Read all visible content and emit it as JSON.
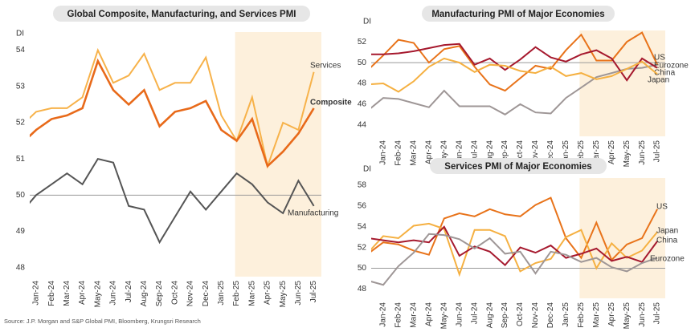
{
  "source": "Source: J.P. Morgan and S&P Global PMI, Bloomberg, Krungsri Research",
  "chart_data": [
    {
      "type": "line",
      "title": "Global Composite, Manufacturing, and Services PMI",
      "y_label": "DI",
      "categories": [
        null,
        "Jan-24",
        "Feb-24",
        "Mar-24",
        "Apr-24",
        "May-24",
        "Jun-24",
        "Jul-24",
        "Aug-24",
        "Sep-24",
        "Oct-24",
        "Nov-24",
        "Dec-24",
        "Jan-25",
        "Feb-25",
        "Mar-25",
        "Apr-25",
        "May-25",
        "Jun-25",
        "Jul-25"
      ],
      "series": [
        {
          "name": "Services",
          "color": "#f7b24a",
          "values": [
            51.9,
            52.3,
            52.4,
            52.4,
            52.7,
            54.0,
            53.1,
            53.3,
            53.9,
            52.9,
            53.1,
            53.1,
            53.8,
            52.2,
            51.5,
            52.7,
            50.8,
            52.0,
            51.8,
            53.4
          ]
        },
        {
          "name": "Composite",
          "color": "#e86a1a",
          "values": [
            51.4,
            51.8,
            52.1,
            52.2,
            52.4,
            53.7,
            52.9,
            52.5,
            52.9,
            51.9,
            52.3,
            52.4,
            52.6,
            51.8,
            51.5,
            52.1,
            50.8,
            51.2,
            51.7,
            52.4
          ]
        },
        {
          "name": "Manufacturing",
          "color": "#555555",
          "values": [
            49.5,
            50.0,
            50.3,
            50.6,
            50.3,
            51.0,
            50.9,
            49.7,
            49.6,
            48.7,
            49.4,
            50.1,
            49.6,
            50.1,
            50.6,
            50.3,
            49.8,
            49.5,
            50.4,
            49.7
          ]
        }
      ],
      "ylim": [
        47.75,
        54.5
      ],
      "yticks": [
        48,
        49,
        50,
        51,
        52,
        53,
        54
      ],
      "reference_line": 50,
      "shaded_range": [
        "Feb-25",
        "Jul-25"
      ],
      "shade_color": "#fdf0dc"
    },
    {
      "type": "line",
      "title": "Manufacturing PMI of Major Economies",
      "y_label": "DI",
      "categories": [
        null,
        "Jan-24",
        "Feb-24",
        "Mar-24",
        "Apr-24",
        "May-24",
        "Jun-24",
        "Jul-24",
        "Aug-24",
        "Sep-24",
        "Oct-24",
        "Nov-24",
        "Dec-24",
        "Jan-25",
        "Feb-25",
        "Mar-25",
        "Apr-25",
        "May-25",
        "Jun-25",
        "Jul-25"
      ],
      "series": [
        {
          "name": "US",
          "color": "#e8731a",
          "values": [
            49.3,
            50.7,
            52.2,
            51.9,
            50.0,
            51.3,
            51.6,
            49.6,
            47.9,
            47.3,
            48.5,
            49.7,
            49.4,
            51.2,
            52.7,
            50.2,
            50.2,
            52.0,
            52.9,
            49.8
          ]
        },
        {
          "name": "Eurozone",
          "color": "#9e9696",
          "values": [
            45.4,
            46.6,
            46.5,
            46.1,
            45.7,
            47.3,
            45.8,
            45.8,
            45.8,
            45.0,
            46.0,
            45.2,
            45.1,
            46.6,
            47.6,
            48.6,
            49.0,
            49.4,
            49.5,
            49.8
          ]
        },
        {
          "name": "China",
          "color": "#a6192e",
          "values": [
            50.8,
            50.8,
            50.9,
            51.1,
            51.4,
            51.7,
            51.8,
            49.8,
            50.4,
            49.3,
            50.3,
            51.5,
            50.5,
            50.1,
            50.8,
            51.2,
            50.4,
            48.3,
            50.4,
            49.5
          ]
        },
        {
          "name": "Japan",
          "color": "#f5b041",
          "values": [
            47.9,
            48.0,
            47.2,
            48.2,
            49.6,
            50.4,
            50.0,
            49.1,
            49.8,
            49.7,
            49.2,
            49.0,
            49.6,
            48.7,
            49.0,
            48.4,
            48.7,
            49.4,
            50.1,
            48.9
          ]
        }
      ],
      "ylim": [
        42.9,
        53.1
      ],
      "yticks": [
        44,
        46,
        48,
        50,
        52
      ],
      "reference_line": 50,
      "shaded_range": [
        "Feb-25",
        "Jul-25"
      ],
      "shade_color": "#fdf0dc"
    },
    {
      "type": "line",
      "title": "Services PMI of Major Economies",
      "y_label": "DI",
      "categories": [
        null,
        "Jan-24",
        "Feb-24",
        "Mar-24",
        "Apr-24",
        "May-24",
        "Jun-24",
        "Jul-24",
        "Aug-24",
        "Sep-24",
        "Oct-24",
        "Nov-24",
        "Dec-24",
        "Jan-25",
        "Feb-25",
        "Mar-25",
        "Apr-25",
        "May-25",
        "Jun-25",
        "Jul-25"
      ],
      "series": [
        {
          "name": "US",
          "color": "#e8731a",
          "values": [
            51.4,
            52.5,
            52.3,
            51.7,
            51.3,
            54.8,
            55.3,
            55.0,
            55.7,
            55.2,
            55.0,
            56.1,
            56.8,
            52.9,
            51.0,
            54.4,
            50.8,
            52.3,
            52.9,
            55.7
          ]
        },
        {
          "name": "Japan",
          "color": "#f5b041",
          "values": [
            51.5,
            53.1,
            52.9,
            54.1,
            54.3,
            53.8,
            49.4,
            53.7,
            53.7,
            53.1,
            49.7,
            50.5,
            50.9,
            53.0,
            53.7,
            50.0,
            52.4,
            51.0,
            51.7,
            53.5
          ]
        },
        {
          "name": "China",
          "color": "#a6192e",
          "values": [
            52.9,
            52.7,
            52.5,
            52.7,
            52.5,
            54.0,
            51.2,
            52.1,
            51.6,
            50.3,
            52.0,
            51.5,
            52.2,
            51.0,
            51.4,
            51.9,
            50.7,
            51.1,
            50.6,
            52.6
          ]
        },
        {
          "name": "Eurozone",
          "color": "#9e9696",
          "values": [
            48.8,
            48.4,
            50.2,
            51.5,
            53.3,
            53.2,
            52.8,
            51.9,
            52.9,
            51.4,
            51.6,
            49.5,
            51.6,
            51.3,
            50.6,
            51.0,
            50.1,
            49.7,
            50.5,
            51.0
          ]
        }
      ],
      "ylim": [
        47.1,
        58.7
      ],
      "yticks": [
        48,
        50,
        52,
        54,
        56,
        58
      ],
      "reference_line": 50,
      "shaded_range": [
        "Feb-25",
        "Jul-25"
      ],
      "shade_color": "#fdf0dc"
    }
  ]
}
